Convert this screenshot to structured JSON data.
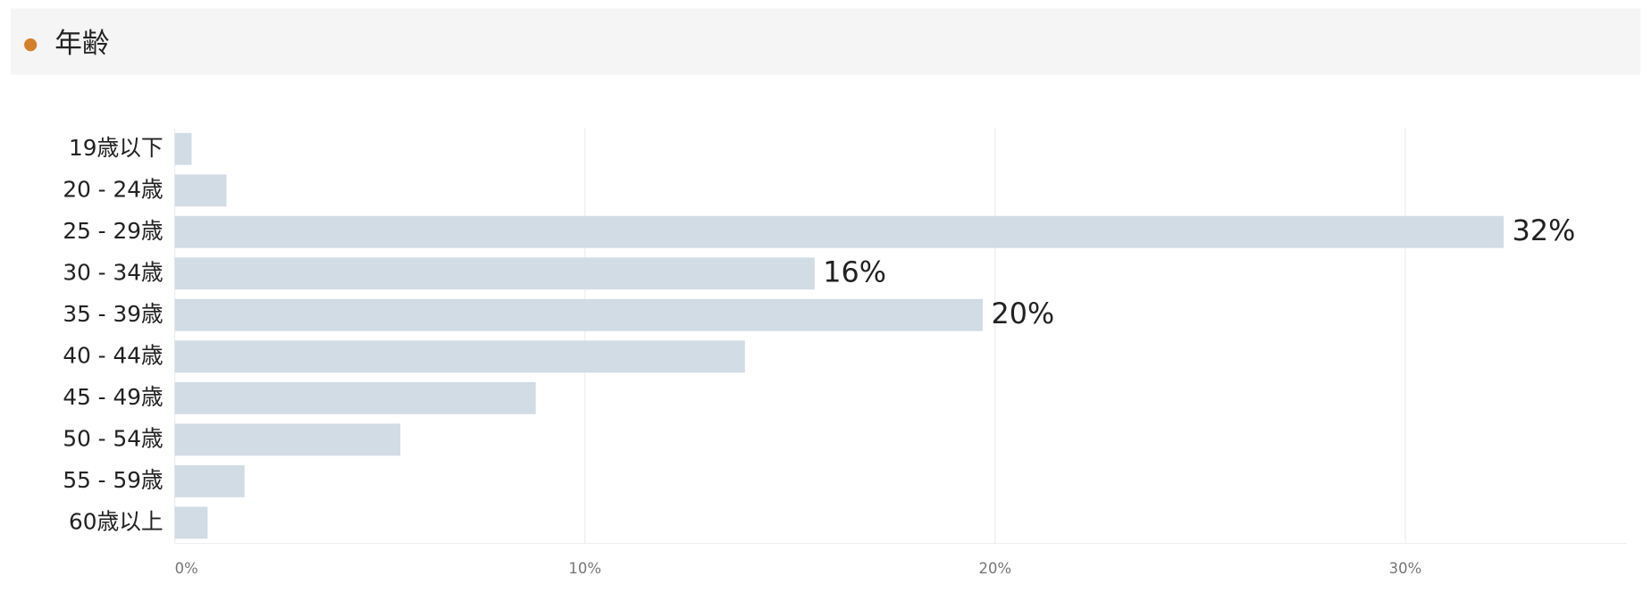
{
  "chart_data": {
    "type": "bar",
    "orientation": "horizontal",
    "title": "年齢",
    "categories": [
      "19歳以下",
      "20 - 24歳",
      "25 - 29歳",
      "30 - 34歳",
      "35 - 39歳",
      "40 - 44歳",
      "45 - 49歳",
      "50 - 54歳",
      "55 - 59歳",
      "60歳以上"
    ],
    "values": [
      0.41,
      1.26,
      32.4,
      15.6,
      19.7,
      13.9,
      8.8,
      5.5,
      1.7,
      0.8
    ],
    "value_labels": [
      null,
      null,
      "32%",
      "16%",
      "20%",
      null,
      null,
      null,
      null,
      null
    ],
    "color": "#d1dce5",
    "xlim": [
      0,
      35.4
    ],
    "xticks": [
      {
        "value": 0,
        "label": "0%"
      },
      {
        "value": 10,
        "label": "10%"
      },
      {
        "value": 20,
        "label": "20%"
      },
      {
        "value": 30,
        "label": "30%"
      }
    ],
    "grid": true
  }
}
